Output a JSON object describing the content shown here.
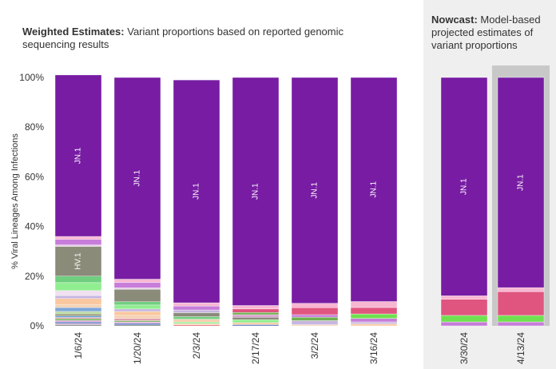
{
  "header": {
    "left_title_bold": "Weighted Estimates:",
    "left_title_rest": " Variant proportions based on reported genomic sequencing results",
    "right_title_bold": "Nowcast:",
    "right_title_rest": " Model-based projected estimates of variant proportions"
  },
  "chart_data": {
    "type": "bar",
    "stacked": true,
    "ylabel": "% Viral Lineages Among Infections",
    "ylim": [
      0,
      100
    ],
    "yticks": [
      "0%",
      "20%",
      "40%",
      "60%",
      "80%",
      "100%"
    ],
    "categories": [
      "1/6/24",
      "1/20/24",
      "2/3/24",
      "2/17/24",
      "3/2/24",
      "3/16/24",
      "3/30/24",
      "4/13/24"
    ],
    "nowcast_categories": [
      "3/30/24",
      "4/13/24"
    ],
    "highlighted_category": "4/13/24",
    "bars": [
      {
        "date": "1/6/24",
        "segments": [
          {
            "value": 0.5,
            "color": "#7f7f7f"
          },
          {
            "value": 0.5,
            "color": "#c8a2c8"
          },
          {
            "value": 0.6,
            "color": "#4f6fbf"
          },
          {
            "value": 0.6,
            "color": "#d9a0d0"
          },
          {
            "value": 0.6,
            "color": "#6fb04f"
          },
          {
            "value": 0.6,
            "color": "#e0a0b0"
          },
          {
            "value": 0.6,
            "color": "#5a9fd4"
          },
          {
            "value": 0.8,
            "color": "#8e8e6e"
          },
          {
            "value": 1.0,
            "color": "#b8d8a0"
          },
          {
            "value": 1.6,
            "color": "#7fa7d8"
          },
          {
            "value": 1.2,
            "color": "#f4d0b0"
          },
          {
            "value": 2.4,
            "color": "#f9c8a0"
          },
          {
            "value": 1.2,
            "color": "#c6b6e0"
          },
          {
            "value": 2.0,
            "color": "#f0e0f0"
          },
          {
            "value": 3.2,
            "color": "#90ee90"
          },
          {
            "value": 2.6,
            "color": "#6fcf7f"
          },
          {
            "value": 12.0,
            "color": "#8b8b7a",
            "label": "HV.1"
          },
          {
            "value": 0.6,
            "color": "#e8d0e8"
          },
          {
            "value": 2.2,
            "color": "#c77dd9"
          },
          {
            "value": 1.2,
            "color": "#f7b6d2"
          },
          {
            "value": 65.0,
            "color": "#771ca3",
            "label": "JN.1"
          }
        ]
      },
      {
        "date": "1/20/24",
        "segments": [
          {
            "value": 0.4,
            "color": "#7f7f7f"
          },
          {
            "value": 0.6,
            "color": "#4f6fbf"
          },
          {
            "value": 0.6,
            "color": "#d9a0d0"
          },
          {
            "value": 0.5,
            "color": "#6fb04f"
          },
          {
            "value": 0.9,
            "color": "#e0a0b0"
          },
          {
            "value": 1.2,
            "color": "#f4d0b0"
          },
          {
            "value": 1.6,
            "color": "#f9c8a0"
          },
          {
            "value": 1.0,
            "color": "#c6b6e0"
          },
          {
            "value": 1.6,
            "color": "#90ee90"
          },
          {
            "value": 1.3,
            "color": "#6fcf7f"
          },
          {
            "value": 5.0,
            "color": "#8b8b7a"
          },
          {
            "value": 0.6,
            "color": "#e8d0e8"
          },
          {
            "value": 2.2,
            "color": "#c77dd9"
          },
          {
            "value": 1.3,
            "color": "#f7b6d2"
          },
          {
            "value": 81.2,
            "color": "#771ca3",
            "label": "JN.1"
          }
        ]
      },
      {
        "date": "2/3/24",
        "segments": [
          {
            "value": 0.4,
            "color": "#e0606f"
          },
          {
            "value": 0.5,
            "color": "#f9c8a0"
          },
          {
            "value": 0.6,
            "color": "#90ee90"
          },
          {
            "value": 1.2,
            "color": "#f4d0b0"
          },
          {
            "value": 1.0,
            "color": "#6fcf7f"
          },
          {
            "value": 1.6,
            "color": "#8b8b7a"
          },
          {
            "value": 1.1,
            "color": "#c6b6e0"
          },
          {
            "value": 1.6,
            "color": "#c77dd9"
          },
          {
            "value": 1.3,
            "color": "#f7b6d2"
          },
          {
            "value": 89.7,
            "color": "#771ca3",
            "label": "JN.1"
          }
        ]
      },
      {
        "date": "2/17/24",
        "segments": [
          {
            "value": 0.5,
            "color": "#4f6fbf"
          },
          {
            "value": 0.8,
            "color": "#f9c8a0"
          },
          {
            "value": 1.2,
            "color": "#90ee90"
          },
          {
            "value": 1.0,
            "color": "#8b8b7a"
          },
          {
            "value": 1.0,
            "color": "#d9a0d0"
          },
          {
            "value": 0.9,
            "color": "#6fb04f"
          },
          {
            "value": 1.4,
            "color": "#e0557f"
          },
          {
            "value": 1.4,
            "color": "#f7b6d2"
          },
          {
            "value": 91.8,
            "color": "#771ca3",
            "label": "JN.1"
          }
        ]
      },
      {
        "date": "3/2/24",
        "segments": [
          {
            "value": 0.5,
            "color": "#f4d0b0"
          },
          {
            "value": 1.6,
            "color": "#c6b6e0"
          },
          {
            "value": 1.4,
            "color": "#6fb04f"
          },
          {
            "value": 1.0,
            "color": "#c77dd9"
          },
          {
            "value": 2.8,
            "color": "#e0557f"
          },
          {
            "value": 1.8,
            "color": "#f7b6d2"
          },
          {
            "value": 90.9,
            "color": "#771ca3",
            "label": "JN.1"
          }
        ]
      },
      {
        "date": "3/16/24",
        "segments": [
          {
            "value": 0.8,
            "color": "#f9c8a0"
          },
          {
            "value": 0.8,
            "color": "#c6b6e0"
          },
          {
            "value": 1.4,
            "color": "#c77dd9"
          },
          {
            "value": 1.8,
            "color": "#6fe04f"
          },
          {
            "value": 2.6,
            "color": "#e0557f"
          },
          {
            "value": 2.4,
            "color": "#f7b6d2"
          },
          {
            "value": 90.2,
            "color": "#771ca3",
            "label": "JN.1"
          }
        ]
      },
      {
        "date": "3/30/24",
        "segments": [
          {
            "value": 1.6,
            "color": "#c77dd9"
          },
          {
            "value": 2.6,
            "color": "#6fe04f"
          },
          {
            "value": 6.5,
            "color": "#e0557f"
          },
          {
            "value": 1.4,
            "color": "#f7b6d2"
          },
          {
            "value": 87.9,
            "color": "#771ca3",
            "label": "JN.1"
          }
        ]
      },
      {
        "date": "4/13/24",
        "segments": [
          {
            "value": 1.6,
            "color": "#c77dd9"
          },
          {
            "value": 2.6,
            "color": "#6fe04f"
          },
          {
            "value": 9.6,
            "color": "#e0557f"
          },
          {
            "value": 1.6,
            "color": "#f7b6d2"
          },
          {
            "value": 84.6,
            "color": "#771ca3",
            "label": "JN.1"
          }
        ]
      }
    ]
  }
}
